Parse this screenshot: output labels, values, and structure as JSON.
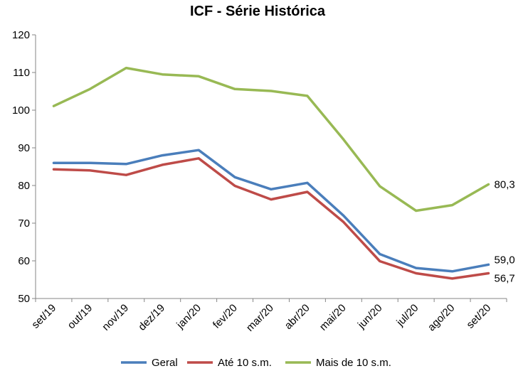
{
  "chart_data": {
    "type": "line",
    "title": "ICF - Série Histórica",
    "categories": [
      "set/19",
      "out/19",
      "nov/19",
      "dez/19",
      "jan/20",
      "fev/20",
      "mar/20",
      "abr/20",
      "mai/20",
      "jun/20",
      "jul/20",
      "ago/20",
      "set/20"
    ],
    "ylim": [
      50,
      120
    ],
    "yticks": [
      "50",
      "60",
      "70",
      "80",
      "90",
      "100",
      "110",
      "120"
    ],
    "grid": false,
    "legend": "bottom",
    "series": [
      {
        "name": "Geral",
        "color": "#4a7ebb",
        "values": [
          86.0,
          86.0,
          85.7,
          88.0,
          89.4,
          82.2,
          79.0,
          80.7,
          72.0,
          61.8,
          58.1,
          57.2,
          59.0
        ],
        "end_label": "59,0"
      },
      {
        "name": "Até 10 s.m.",
        "color": "#be4b48",
        "values": [
          84.3,
          84.0,
          82.8,
          85.5,
          87.2,
          79.9,
          76.3,
          78.3,
          70.3,
          59.9,
          56.7,
          55.3,
          56.7
        ],
        "end_label": "56,7"
      },
      {
        "name": "Mais de 10 s.m.",
        "color": "#98b954",
        "values": [
          101.1,
          105.6,
          111.2,
          109.5,
          109.0,
          105.6,
          105.1,
          103.8,
          92.2,
          79.8,
          73.3,
          74.8,
          80.3
        ],
        "end_label": "80,3"
      }
    ]
  }
}
